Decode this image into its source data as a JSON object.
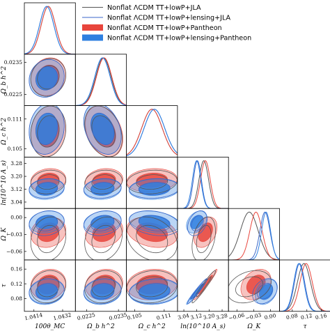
{
  "chart_data": {
    "type": "triangle",
    "title": "",
    "parameters": [
      {
        "label": "100θ_MC",
        "ticks": [
          1.0414,
          1.0432
        ],
        "tick_labels": [
          "1.0414",
          "1.0432"
        ]
      },
      {
        "label": "Ω_b h^2",
        "ticks": [
          0.0225,
          0.0235
        ],
        "tick_labels": [
          "0.0225",
          "0.0235"
        ]
      },
      {
        "label": "Ω_c h^2",
        "ticks": [
          0.105,
          0.111
        ],
        "tick_labels": [
          "0.105",
          "0.111"
        ]
      },
      {
        "label": "ln(10^10 A_s)",
        "ticks": [
          3.04,
          3.12,
          3.2,
          3.28
        ],
        "tick_labels": [
          "3.04",
          "3.12",
          "3.20",
          "3.28"
        ]
      },
      {
        "label": "Ω_K",
        "ticks": [
          -0.06,
          -0.03,
          0.0
        ],
        "tick_labels": [
          "−0.06",
          "−0.03",
          "0.00"
        ]
      },
      {
        "label": "τ",
        "ticks": [
          0.08,
          0.12,
          0.16
        ],
        "tick_labels": [
          "0.08",
          "0.12",
          "0.16"
        ]
      }
    ],
    "series": [
      {
        "name": "Nonflat ΛCDM TT+lowP+JLA",
        "color": "#555555",
        "style": "line",
        "mean": [
          1.0423,
          0.02303,
          0.1085,
          3.165,
          -0.038,
          0.112
        ],
        "sigma": [
          0.00045,
          0.00024,
          0.0021,
          0.03,
          0.016,
          0.018
        ]
      },
      {
        "name": "Nonflat ΛCDM TT+lowP+lensing+JLA",
        "color": "#3a66c8",
        "style": "line",
        "mean": [
          1.0422,
          0.023,
          0.109,
          3.125,
          -0.01,
          0.1
        ],
        "sigma": [
          0.00045,
          0.00024,
          0.0021,
          0.025,
          0.009,
          0.014
        ]
      },
      {
        "name": "Nonflat ΛCDM TT+lowP+Pantheon",
        "color": "#e8453c",
        "style": "filled",
        "mean": [
          1.0423,
          0.02305,
          0.1085,
          3.175,
          -0.026,
          0.118
        ],
        "sigma": [
          0.00045,
          0.00024,
          0.0021,
          0.03,
          0.011,
          0.017
        ]
      },
      {
        "name": "Nonflat ΛCDM TT+lowP+lensing+Pantheon",
        "color": "#2e7fe0",
        "style": "filled",
        "mean": [
          1.0422,
          0.023,
          0.109,
          3.12,
          -0.008,
          0.098
        ],
        "sigma": [
          0.00045,
          0.00024,
          0.0021,
          0.026,
          0.008,
          0.014
        ]
      }
    ],
    "legend_placement": "top-right"
  }
}
